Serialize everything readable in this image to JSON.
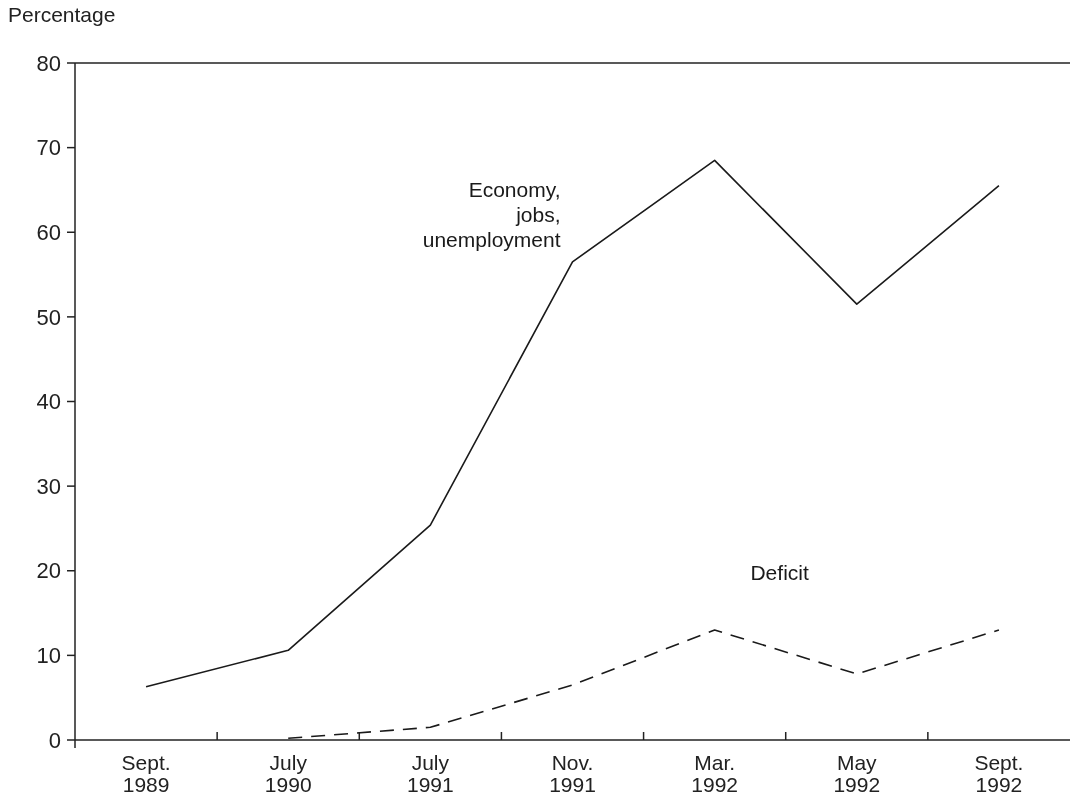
{
  "chart_data": {
    "type": "line",
    "ylabel": "Percentage",
    "categories": [
      "Sept. 1989",
      "July 1990",
      "July 1991",
      "Nov. 1991",
      "Mar. 1992",
      "May 1992",
      "Sept. 1992"
    ],
    "series": [
      {
        "name": "Economy, jobs, unemployment",
        "color": "#1a1a1a",
        "line_style": "solid",
        "values": [
          6.3,
          10.6,
          25.4,
          56.5,
          68.5,
          51.5,
          65.5
        ]
      },
      {
        "name": "Deficit",
        "color": "#1a1a1a",
        "line_style": "dashed",
        "values": [
          null,
          0.2,
          1.5,
          6.5,
          13,
          7.8,
          13
        ]
      }
    ],
    "ylim": [
      0,
      80
    ],
    "yticks": [
      0,
      10,
      20,
      30,
      40,
      50,
      60,
      70,
      80
    ],
    "grid": false,
    "marker": "none"
  }
}
